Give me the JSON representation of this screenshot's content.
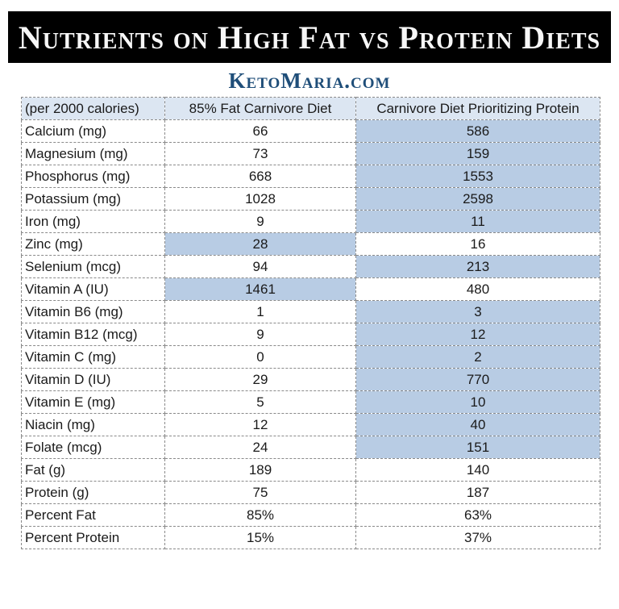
{
  "header": {
    "title": "Nutrients on High Fat vs Protein Diets",
    "site": "KetoMaria.com"
  },
  "colors": {
    "title_bar_bg": "#000000",
    "title_text": "#f7f7f7",
    "site_text": "#1f4e79",
    "header_row_bg": "#dce6f2",
    "highlight_cell_bg": "#b8cce4",
    "border": "#8a8a8a"
  },
  "table": {
    "columns": [
      "(per 2000 calories)",
      "85% Fat Carnivore Diet",
      "Carnivore Diet Prioritizing Protein"
    ],
    "rows": [
      {
        "label": "Calcium (mg)",
        "fat": "66",
        "protein": "586",
        "highlight": "protein"
      },
      {
        "label": "Magnesium (mg)",
        "fat": "73",
        "protein": "159",
        "highlight": "protein"
      },
      {
        "label": "Phosphorus (mg)",
        "fat": "668",
        "protein": "1553",
        "highlight": "protein"
      },
      {
        "label": "Potassium (mg)",
        "fat": "1028",
        "protein": "2598",
        "highlight": "protein"
      },
      {
        "label": "Iron (mg)",
        "fat": "9",
        "protein": "11",
        "highlight": "protein"
      },
      {
        "label": "Zinc (mg)",
        "fat": "28",
        "protein": "16",
        "highlight": "fat"
      },
      {
        "label": "Selenium (mcg)",
        "fat": "94",
        "protein": "213",
        "highlight": "protein"
      },
      {
        "label": "Vitamin A (IU)",
        "fat": "1461",
        "protein": "480",
        "highlight": "fat"
      },
      {
        "label": "Vitamin B6 (mg)",
        "fat": "1",
        "protein": "3",
        "highlight": "protein"
      },
      {
        "label": "Vitamin B12 (mcg)",
        "fat": "9",
        "protein": "12",
        "highlight": "protein"
      },
      {
        "label": "Vitamin C (mg)",
        "fat": "0",
        "protein": "2",
        "highlight": "protein"
      },
      {
        "label": "Vitamin D (IU)",
        "fat": "29",
        "protein": "770",
        "highlight": "protein"
      },
      {
        "label": "Vitamin E (mg)",
        "fat": "5",
        "protein": "10",
        "highlight": "protein"
      },
      {
        "label": "Niacin (mg)",
        "fat": "12",
        "protein": "40",
        "highlight": "protein"
      },
      {
        "label": "Folate (mcg)",
        "fat": "24",
        "protein": "151",
        "highlight": "protein"
      },
      {
        "label": "Fat (g)",
        "fat": "189",
        "protein": "140",
        "highlight": "none"
      },
      {
        "label": "Protein (g)",
        "fat": "75",
        "protein": "187",
        "highlight": "none"
      },
      {
        "label": "Percent Fat",
        "fat": "85%",
        "protein": "63%",
        "highlight": "none"
      },
      {
        "label": "Percent Protein",
        "fat": "15%",
        "protein": "37%",
        "highlight": "none"
      }
    ]
  }
}
